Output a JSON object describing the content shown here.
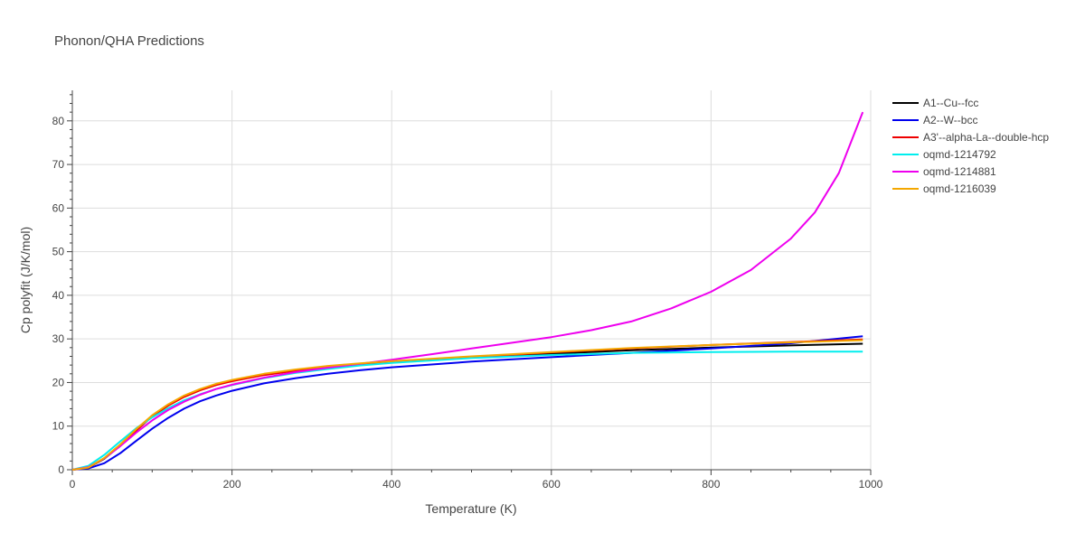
{
  "chart_data": {
    "type": "line",
    "title": "Phonon/QHA Predictions",
    "xlabel": "Temperature (K)",
    "ylabel": "Cp polyfit (J/K/mol)",
    "xlim": [
      0,
      1000
    ],
    "ylim": [
      0,
      87
    ],
    "xticks": [
      0,
      200,
      400,
      600,
      800,
      1000
    ],
    "yticks": [
      0,
      10,
      20,
      30,
      40,
      50,
      60,
      70,
      80
    ],
    "grid": true,
    "legend_position": "top-right",
    "series": [
      {
        "name": "A1--Cu--fcc",
        "color": "#000000",
        "x": [
          0,
          20,
          40,
          60,
          80,
          100,
          120,
          140,
          160,
          180,
          200,
          240,
          280,
          320,
          360,
          400,
          500,
          600,
          700,
          800,
          900,
          990
        ],
        "y": [
          0,
          0.5,
          2.5,
          5.5,
          9,
          12.3,
          14.8,
          16.8,
          18.3,
          19.5,
          20.4,
          21.8,
          22.8,
          23.6,
          24.2,
          24.7,
          25.7,
          26.6,
          27.4,
          28.0,
          28.5,
          28.9
        ]
      },
      {
        "name": "A2--W--bcc",
        "color": "#0000ee",
        "x": [
          0,
          20,
          40,
          60,
          80,
          100,
          120,
          140,
          160,
          180,
          200,
          240,
          280,
          320,
          360,
          400,
          500,
          600,
          700,
          800,
          900,
          990
        ],
        "y": [
          0,
          0.3,
          1.5,
          3.8,
          6.6,
          9.4,
          11.9,
          14.0,
          15.7,
          17.0,
          18.1,
          19.8,
          21.0,
          22.0,
          22.8,
          23.5,
          24.8,
          25.8,
          26.8,
          27.8,
          29.0,
          30.6
        ]
      },
      {
        "name": "A3'--alpha-La--double-hcp",
        "color": "#ee0000",
        "x": [
          0,
          20,
          40,
          60,
          80,
          100,
          120,
          140,
          160,
          180,
          200,
          240,
          280,
          320,
          360,
          400,
          500,
          600,
          700,
          800,
          900,
          990
        ],
        "y": [
          0,
          0.5,
          2.6,
          5.6,
          9.0,
          12.2,
          14.7,
          16.7,
          18.2,
          19.4,
          20.3,
          21.7,
          22.7,
          23.5,
          24.1,
          24.6,
          25.8,
          26.9,
          27.8,
          28.6,
          29.3,
          29.9
        ]
      },
      {
        "name": "oqmd-1214792",
        "color": "#00eeee",
        "x": [
          0,
          20,
          40,
          60,
          80,
          100,
          120,
          140,
          160,
          180,
          200,
          240,
          280,
          320,
          360,
          400,
          500,
          600,
          700,
          800,
          900,
          990
        ],
        "y": [
          0,
          0.9,
          3.4,
          6.5,
          9.5,
          12.0,
          14.1,
          15.9,
          17.3,
          18.5,
          19.4,
          21.0,
          22.2,
          23.1,
          23.9,
          24.5,
          25.6,
          26.3,
          26.8,
          27.0,
          27.1,
          27.1
        ]
      },
      {
        "name": "oqmd-1214881",
        "color": "#ee00ee",
        "x": [
          0,
          20,
          40,
          60,
          80,
          100,
          120,
          140,
          160,
          180,
          200,
          240,
          280,
          320,
          360,
          400,
          450,
          500,
          550,
          600,
          650,
          700,
          750,
          800,
          850,
          900,
          930,
          960,
          990
        ],
        "y": [
          0,
          0.6,
          2.6,
          5.4,
          8.5,
          11.3,
          13.7,
          15.6,
          17.2,
          18.5,
          19.5,
          21.1,
          22.4,
          23.4,
          24.3,
          25.2,
          26.5,
          27.8,
          29.1,
          30.4,
          32.0,
          34.0,
          37.0,
          40.8,
          45.8,
          53.0,
          59.0,
          68.0,
          82.0
        ]
      },
      {
        "name": "oqmd-1216039",
        "color": "#f4a700",
        "x": [
          0,
          20,
          40,
          60,
          80,
          100,
          120,
          140,
          160,
          180,
          200,
          240,
          280,
          320,
          360,
          400,
          500,
          600,
          700,
          800,
          900,
          990
        ],
        "y": [
          0,
          0.5,
          2.7,
          5.8,
          9.3,
          12.5,
          15.0,
          17.0,
          18.5,
          19.7,
          20.6,
          22.0,
          23.0,
          23.8,
          24.4,
          24.9,
          26.0,
          27.0,
          27.9,
          28.6,
          29.2,
          29.7
        ]
      }
    ]
  }
}
